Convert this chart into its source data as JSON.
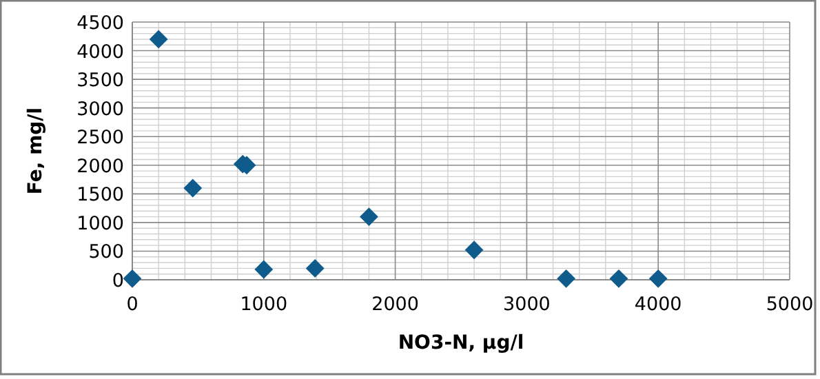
{
  "chart_data": {
    "type": "scatter",
    "xlabel": "NO3-N, µg/l",
    "ylabel": "Fe, mg/l",
    "x": [
      0,
      200,
      460,
      840,
      870,
      1000,
      1390,
      1800,
      2600,
      3300,
      3700,
      4000
    ],
    "values": [
      20,
      4200,
      1600,
      2020,
      2000,
      180,
      200,
      1100,
      520,
      20,
      20,
      20
    ],
    "color": "#0f5b8c",
    "marker": "diamond",
    "xlim": [
      0,
      5000
    ],
    "xticks": [
      0,
      1000,
      2000,
      3000,
      4000,
      5000
    ],
    "ylim": [
      0,
      4500
    ],
    "yticks": [
      0,
      500,
      1000,
      1500,
      2000,
      2500,
      3000,
      3500,
      4000,
      4500
    ],
    "grid": true
  }
}
